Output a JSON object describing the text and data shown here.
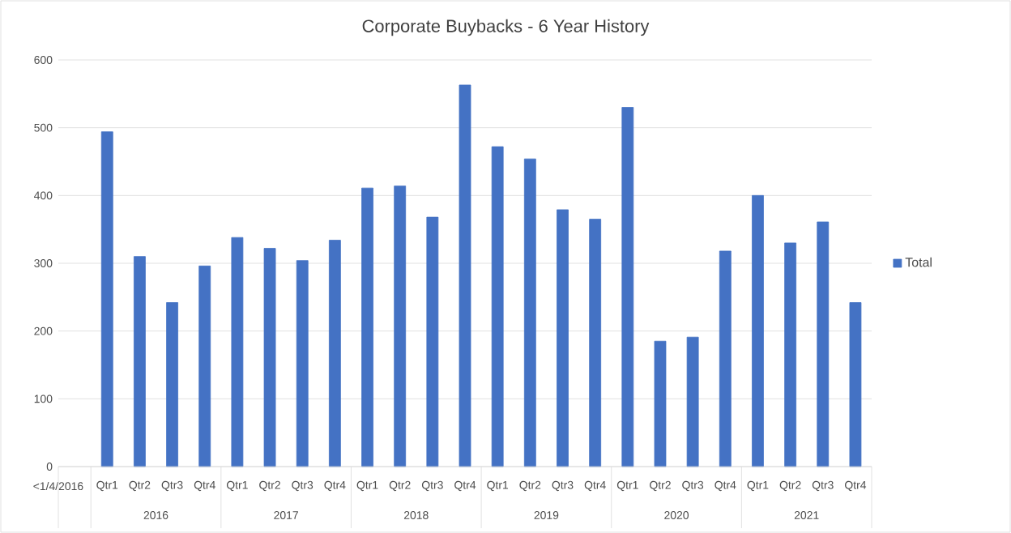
{
  "chart_data": {
    "type": "bar",
    "title": "Corporate Buybacks - 6 Year History",
    "categories": [
      "<1/4/2016",
      "Qtr1",
      "Qtr2",
      "Qtr3",
      "Qtr4",
      "Qtr1",
      "Qtr2",
      "Qtr3",
      "Qtr4",
      "Qtr1",
      "Qtr2",
      "Qtr3",
      "Qtr4",
      "Qtr1",
      "Qtr2",
      "Qtr3",
      "Qtr4",
      "Qtr1",
      "Qtr2",
      "Qtr3",
      "Qtr4",
      "Qtr1",
      "Qtr2",
      "Qtr3",
      "Qtr4"
    ],
    "series": [
      {
        "name": "Total",
        "color": "#4472c4",
        "values": [
          null,
          494,
          310,
          242,
          296,
          338,
          322,
          304,
          334,
          411,
          414,
          368,
          563,
          472,
          454,
          379,
          365,
          530,
          185,
          191,
          318,
          400,
          330,
          361,
          242
        ]
      }
    ],
    "annotations": [
      "2016",
      "2017",
      "2018",
      "2019",
      "2020",
      "2021"
    ],
    "ylim": [
      0,
      600
    ],
    "yticks": [
      0,
      100,
      200,
      300,
      400,
      500,
      600
    ],
    "grid": "y",
    "legend": "right"
  }
}
